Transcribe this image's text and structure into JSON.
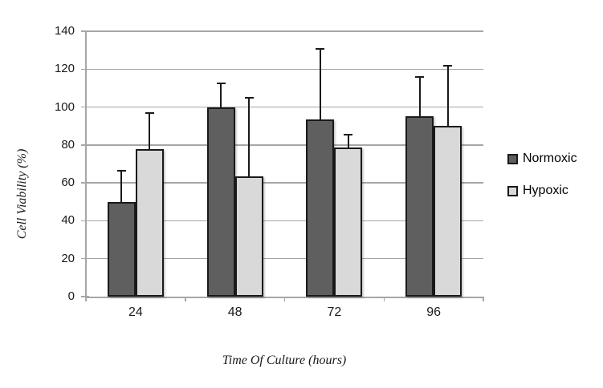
{
  "chart_data": {
    "type": "bar",
    "title": "",
    "categories": [
      "24",
      "48",
      "72",
      "96"
    ],
    "series": [
      {
        "name": "Normoxic",
        "color": "#5f5f5f",
        "values": [
          50,
          100,
          93.5,
          95
        ],
        "error_plus": [
          16.5,
          12.5,
          37,
          21
        ]
      },
      {
        "name": "Hypoxic",
        "color": "#d9d9d9",
        "values": [
          78,
          63.5,
          78.5,
          90
        ],
        "error_plus": [
          19,
          41.5,
          7,
          32
        ]
      }
    ],
    "xlabel": "Time Of Culture (hours)",
    "ylabel": "Cell Viability (%)",
    "ylim": [
      0,
      140
    ],
    "ytick_step": 20,
    "ytick_labels": [
      "0",
      "20",
      "40",
      "60",
      "80",
      "100",
      "120",
      "140"
    ],
    "grid": true,
    "legend_position": "right",
    "error_bars": "upper-only"
  },
  "colors": {
    "background": "#ffffff",
    "gridline": "#a6a6a6",
    "axis": "#a6a6a6",
    "bar_border": "#1a1a1a",
    "error_bar": "#1a1a1a",
    "text": "#1a1a1a"
  }
}
